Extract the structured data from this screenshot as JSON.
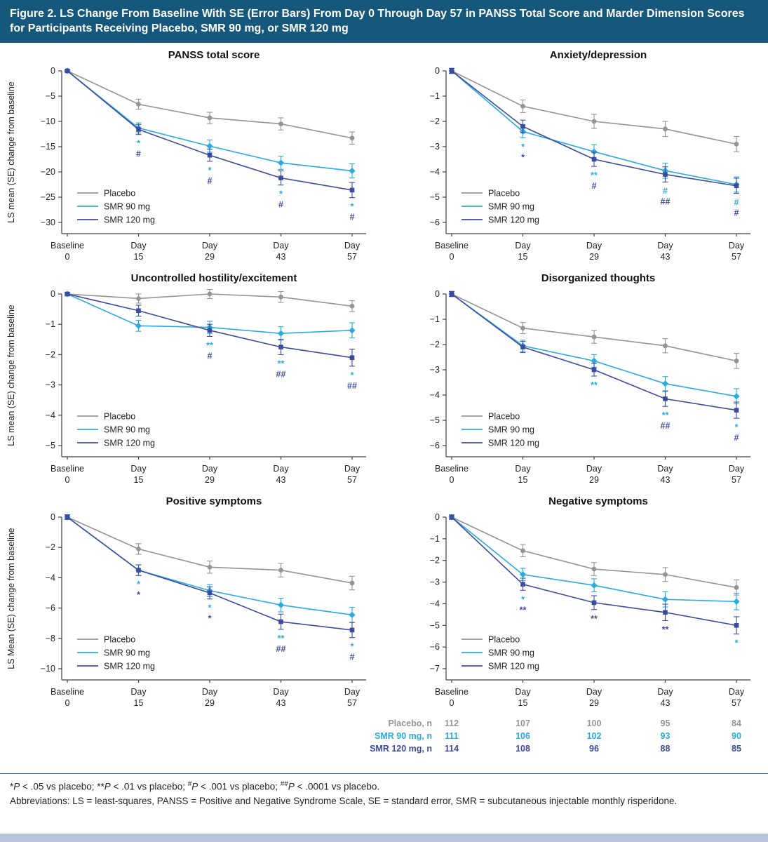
{
  "header": {
    "title": "Figure 2. LS Change From Baseline With SE (Error Bars) From Day 0 Through Day 57 in PANSS Total Score and Marder Dimension Scores for Participants Receiving Placebo, SMR 90 mg, or SMR 120 mg"
  },
  "colors": {
    "header_bg": "#16587C",
    "placebo": "#949494",
    "smr90": "#29ABE2",
    "smr120": "#3B4BA0",
    "divider": "#2E74B5",
    "bottom_bar": "#B7C4DA"
  },
  "series_meta": {
    "placebo": {
      "name": "Placebo",
      "marker": "circle"
    },
    "smr90": {
      "name": "SMR 90 mg",
      "marker": "diamond"
    },
    "smr120": {
      "name": "SMR 120 mg",
      "marker": "square"
    }
  },
  "x_axis": {
    "labels": [
      [
        "Baseline",
        "0"
      ],
      [
        "Day",
        "15"
      ],
      [
        "Day",
        "29"
      ],
      [
        "Day",
        "43"
      ],
      [
        "Day",
        "57"
      ]
    ]
  },
  "chart_data": [
    {
      "id": "panss-total",
      "type": "line",
      "title": "PANSS total score",
      "ylabel": "LS mean (SE) change from baseline",
      "ylim": [
        -30,
        0
      ],
      "yticks": [
        0,
        -5,
        -10,
        -15,
        -20,
        -25,
        -30
      ],
      "series": [
        {
          "key": "placebo",
          "values": [
            0,
            -6.6,
            -9.3,
            -10.5,
            -13.3
          ],
          "se": [
            0.2,
            1.0,
            1.1,
            1.2,
            1.2
          ]
        },
        {
          "key": "smr90",
          "values": [
            0,
            -11.3,
            -14.9,
            -18.2,
            -19.8
          ],
          "se": [
            0.2,
            1.0,
            1.2,
            1.3,
            1.4
          ]
        },
        {
          "key": "smr120",
          "values": [
            0,
            -11.6,
            -16.7,
            -21.2,
            -23.6
          ],
          "se": [
            0.2,
            1.0,
            1.2,
            1.4,
            1.5
          ]
        }
      ],
      "sig": [
        {
          "x_index": 1,
          "rows": [
            {
              "text": "*",
              "color": "smr90"
            },
            {
              "text": "#",
              "color": "smr120"
            }
          ]
        },
        {
          "x_index": 2,
          "rows": [
            {
              "text": "*",
              "color": "smr90"
            },
            {
              "text": "#",
              "color": "smr120"
            }
          ]
        },
        {
          "x_index": 3,
          "rows": [
            {
              "text": "*",
              "color": "smr90"
            },
            {
              "text": "#",
              "color": "smr120"
            }
          ]
        },
        {
          "x_index": 4,
          "rows": [
            {
              "text": "*",
              "color": "smr90"
            },
            {
              "text": "#",
              "color": "smr120"
            }
          ]
        }
      ]
    },
    {
      "id": "anxiety-depression",
      "type": "line",
      "title": "Anxiety/depression",
      "ylabel": "",
      "ylim": [
        -6,
        0
      ],
      "yticks": [
        0,
        -1,
        -2,
        -3,
        -4,
        -5,
        -6
      ],
      "series": [
        {
          "key": "placebo",
          "values": [
            0,
            -1.4,
            -2.0,
            -2.3,
            -2.9
          ],
          "se": [
            0.1,
            0.25,
            0.28,
            0.3,
            0.3
          ]
        },
        {
          "key": "smr90",
          "values": [
            0,
            -2.4,
            -3.2,
            -3.95,
            -4.5
          ],
          "se": [
            0.1,
            0.25,
            0.28,
            0.3,
            0.3
          ]
        },
        {
          "key": "smr120",
          "values": [
            0,
            -2.2,
            -3.5,
            -4.1,
            -4.55
          ],
          "se": [
            0.1,
            0.25,
            0.28,
            0.3,
            0.3
          ]
        }
      ],
      "sig": [
        {
          "x_index": 1,
          "rows": [
            {
              "text": "*",
              "color": "smr90"
            },
            {
              "text": "*",
              "color": "smr120"
            }
          ]
        },
        {
          "x_index": 2,
          "rows": [
            {
              "text": "**",
              "color": "smr90"
            },
            {
              "text": "#",
              "color": "smr120"
            }
          ]
        },
        {
          "x_index": 3,
          "rows": [
            {
              "text": "#",
              "color": "smr90"
            },
            {
              "text": "##",
              "color": "smr120"
            }
          ]
        },
        {
          "x_index": 4,
          "rows": [
            {
              "text": "#",
              "color": "smr90"
            },
            {
              "text": "#",
              "color": "smr120"
            }
          ]
        }
      ]
    },
    {
      "id": "hostility-excitement",
      "type": "line",
      "title": "Uncontrolled hostility/excitement",
      "ylabel": "LS mean (SE) change from baseline",
      "ylim": [
        -5,
        0
      ],
      "yticks": [
        0,
        -1,
        -2,
        -3,
        -4,
        -5
      ],
      "series": [
        {
          "key": "placebo",
          "values": [
            0,
            -0.15,
            0,
            -0.1,
            -0.4
          ],
          "se": [
            0.05,
            0.15,
            0.15,
            0.18,
            0.18
          ]
        },
        {
          "key": "smr90",
          "values": [
            0,
            -1.05,
            -1.1,
            -1.3,
            -1.2
          ],
          "se": [
            0.05,
            0.18,
            0.2,
            0.22,
            0.25
          ]
        },
        {
          "key": "smr120",
          "values": [
            0,
            -0.55,
            -1.2,
            -1.75,
            -2.1
          ],
          "se": [
            0.05,
            0.18,
            0.2,
            0.25,
            0.28
          ]
        }
      ],
      "sig": [
        {
          "x_index": 2,
          "rows": [
            {
              "text": "**",
              "color": "smr90"
            },
            {
              "text": "#",
              "color": "smr120"
            }
          ]
        },
        {
          "x_index": 3,
          "rows": [
            {
              "text": "**",
              "color": "smr90"
            },
            {
              "text": "##",
              "color": "smr120"
            }
          ]
        },
        {
          "x_index": 4,
          "rows": [
            {
              "text": "*",
              "color": "smr90"
            },
            {
              "text": "##",
              "color": "smr120"
            }
          ]
        }
      ]
    },
    {
      "id": "disorganized-thoughts",
      "type": "line",
      "title": "Disorganized thoughts",
      "ylabel": "",
      "ylim": [
        -6,
        0
      ],
      "yticks": [
        0,
        -1,
        -2,
        -3,
        -4,
        -5,
        -6
      ],
      "series": [
        {
          "key": "placebo",
          "values": [
            0,
            -1.35,
            -1.7,
            -2.05,
            -2.65
          ],
          "se": [
            0.1,
            0.22,
            0.25,
            0.28,
            0.3
          ]
        },
        {
          "key": "smr90",
          "values": [
            0,
            -2.05,
            -2.65,
            -3.55,
            -4.05
          ],
          "se": [
            0.1,
            0.22,
            0.25,
            0.28,
            0.3
          ]
        },
        {
          "key": "smr120",
          "values": [
            0,
            -2.1,
            -3.0,
            -4.15,
            -4.6
          ],
          "se": [
            0.1,
            0.22,
            0.25,
            0.3,
            0.32
          ]
        }
      ],
      "sig": [
        {
          "x_index": 2,
          "rows": [
            {
              "text": "**",
              "color": "smr90"
            }
          ]
        },
        {
          "x_index": 3,
          "rows": [
            {
              "text": "**",
              "color": "smr90"
            },
            {
              "text": "##",
              "color": "smr120"
            }
          ]
        },
        {
          "x_index": 4,
          "rows": [
            {
              "text": "*",
              "color": "smr90"
            },
            {
              "text": "#",
              "color": "smr120"
            }
          ]
        }
      ]
    },
    {
      "id": "positive-symptoms",
      "type": "line",
      "title": "Positive symptoms",
      "ylabel": "LS Mean (SE) change from baseline",
      "ylim": [
        -10,
        0
      ],
      "yticks": [
        0,
        -2,
        -4,
        -6,
        -8,
        -10
      ],
      "series": [
        {
          "key": "placebo",
          "values": [
            0,
            -2.1,
            -3.3,
            -3.5,
            -4.35
          ],
          "se": [
            0.15,
            0.35,
            0.4,
            0.45,
            0.45
          ]
        },
        {
          "key": "smr90",
          "values": [
            0,
            -3.5,
            -4.85,
            -5.8,
            -6.45
          ],
          "se": [
            0.15,
            0.35,
            0.4,
            0.45,
            0.5
          ]
        },
        {
          "key": "smr120",
          "values": [
            0,
            -3.5,
            -5.0,
            -6.9,
            -7.45
          ],
          "se": [
            0.15,
            0.35,
            0.4,
            0.5,
            0.5
          ]
        }
      ],
      "sig": [
        {
          "x_index": 1,
          "rows": [
            {
              "text": "*",
              "color": "smr90"
            },
            {
              "text": "*",
              "color": "smr120"
            }
          ]
        },
        {
          "x_index": 2,
          "rows": [
            {
              "text": "*",
              "color": "smr90"
            },
            {
              "text": "*",
              "color": "smr120"
            }
          ]
        },
        {
          "x_index": 3,
          "rows": [
            {
              "text": "**",
              "color": "smr90"
            },
            {
              "text": "##",
              "color": "smr120"
            }
          ]
        },
        {
          "x_index": 4,
          "rows": [
            {
              "text": "*",
              "color": "smr90"
            },
            {
              "text": "#",
              "color": "smr120"
            }
          ]
        }
      ]
    },
    {
      "id": "negative-symptoms",
      "type": "line",
      "title": "Negative symptoms",
      "ylabel": "",
      "ylim": [
        -7,
        0
      ],
      "yticks": [
        0,
        -1,
        -2,
        -3,
        -4,
        -5,
        -6,
        -7
      ],
      "series": [
        {
          "key": "placebo",
          "values": [
            0,
            -1.55,
            -2.4,
            -2.65,
            -3.25
          ],
          "se": [
            0.1,
            0.28,
            0.3,
            0.32,
            0.35
          ]
        },
        {
          "key": "smr90",
          "values": [
            0,
            -2.65,
            -3.15,
            -3.8,
            -3.9
          ],
          "se": [
            0.1,
            0.28,
            0.3,
            0.35,
            0.38
          ]
        },
        {
          "key": "smr120",
          "values": [
            0,
            -3.1,
            -3.95,
            -4.4,
            -5.0
          ],
          "se": [
            0.1,
            0.28,
            0.32,
            0.38,
            0.4
          ]
        }
      ],
      "sig": [
        {
          "x_index": 1,
          "rows": [
            {
              "text": "*",
              "color": "smr90"
            },
            {
              "text": "**",
              "color": "smr120"
            }
          ]
        },
        {
          "x_index": 2,
          "rows": [
            {
              "text": "**",
              "color": "smr120"
            }
          ]
        },
        {
          "x_index": 3,
          "rows": [
            {
              "text": "**",
              "color": "smr120"
            }
          ]
        },
        {
          "x_index": 4,
          "rows": [
            {
              "text": "*",
              "color": "smr90"
            }
          ]
        }
      ]
    }
  ],
  "sample_table": {
    "rows": [
      {
        "label": "Placebo, n",
        "color": "placebo",
        "values": [
          "112",
          "107",
          "100",
          "95",
          "84"
        ]
      },
      {
        "label": "SMR 90 mg, n",
        "color": "smr90",
        "values": [
          "111",
          "106",
          "102",
          "93",
          "90"
        ]
      },
      {
        "label": "SMR 120 mg, n",
        "color": "smr120",
        "values": [
          "114",
          "108",
          "96",
          "88",
          "85"
        ]
      }
    ]
  },
  "footnotes": {
    "significance": [
      {
        "text": "*"
      },
      {
        "text": "P",
        "italic": true
      },
      {
        "text": " < .05 vs placebo; "
      },
      {
        "text": "**"
      },
      {
        "text": "P",
        "italic": true
      },
      {
        "text": " < .01 vs placebo; "
      },
      {
        "text": "#",
        "sup": true
      },
      {
        "text": "P",
        "italic": true
      },
      {
        "text": " < .001 vs placebo; "
      },
      {
        "text": "##",
        "sup": true
      },
      {
        "text": "P",
        "italic": true
      },
      {
        "text": " < .0001 vs placebo."
      }
    ],
    "abbreviations": "Abbreviations: LS = least-squares, PANSS = Positive and Negative Syndrome Scale, SE = standard error, SMR = subcutaneous injectable monthly risperidone."
  }
}
